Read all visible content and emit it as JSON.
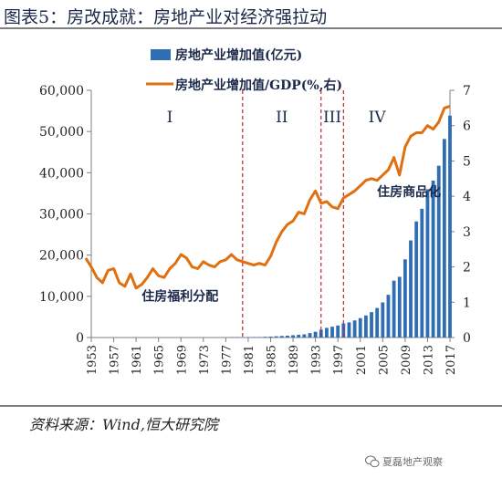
{
  "title": "图表5：房改成就：房地产业对经济强拉动",
  "source": "资料来源：Wind,恒大研究院",
  "watermark": "夏磊地产观察",
  "colors": {
    "bar": "#2f6db5",
    "line": "#e0700f",
    "divider": "#c0262d",
    "text": "#1b2a4a",
    "axis": "#7f7f7f"
  },
  "chart_data": {
    "type": "bar+line",
    "legend": {
      "position": "top",
      "bar_label": "房地产业增加值(亿元)",
      "line_label": "房地产业增加值/GDP(%,右)"
    },
    "x_ticks": [
      "1953",
      "1957",
      "1961",
      "1965",
      "1969",
      "1973",
      "1977",
      "1981",
      "1985",
      "1989",
      "1993",
      "1997",
      "2001",
      "2005",
      "2009",
      "2013",
      "2017"
    ],
    "x_range": [
      1953,
      2017
    ],
    "y_left": {
      "ticks": [
        "0",
        "10,000",
        "20,000",
        "30,000",
        "40,000",
        "50,000",
        "60,000"
      ],
      "range": [
        0,
        60000
      ]
    },
    "y_right": {
      "ticks": [
        "0",
        "1",
        "2",
        "3",
        "4",
        "5",
        "6",
        "7"
      ],
      "range": [
        0,
        7
      ]
    },
    "periods": [
      {
        "label": "I",
        "center_year": 1967
      },
      {
        "label": "II",
        "center_year": 1987
      },
      {
        "label": "III",
        "center_year": 1996
      },
      {
        "label": "IV",
        "center_year": 2004
      }
    ],
    "dividers": [
      1980,
      1994,
      1998
    ],
    "annotations": [
      {
        "text": "住房福利分配",
        "year": 1962,
        "value_right": 1.05
      },
      {
        "text": "住房商品化",
        "year": 2004,
        "value_right": 4.0
      }
    ],
    "bar_series": {
      "name": "房地产业增加值(亿元)",
      "years": [
        1978,
        1979,
        1980,
        1981,
        1982,
        1983,
        1984,
        1985,
        1986,
        1987,
        1988,
        1989,
        1990,
        1991,
        1992,
        1993,
        1994,
        1995,
        1996,
        1997,
        1998,
        1999,
        2000,
        2001,
        2002,
        2003,
        2004,
        2005,
        2006,
        2007,
        2008,
        2009,
        2010,
        2011,
        2012,
        2013,
        2014,
        2015,
        2016,
        2017
      ],
      "values": [
        80,
        90,
        96,
        99,
        115,
        125,
        165,
        215,
        295,
        380,
        450,
        560,
        660,
        770,
        1080,
        1400,
        1900,
        2350,
        2620,
        2920,
        3430,
        3680,
        4150,
        4710,
        5350,
        6170,
        7170,
        8520,
        10370,
        13810,
        14740,
        18970,
        23570,
        28170,
        31250,
        35990,
        38090,
        41700,
        48190,
        53850
      ]
    },
    "line_series": {
      "name": "房地产业增加值/GDP(%,右)",
      "points": [
        [
          1952,
          2.25
        ],
        [
          1953,
          2.0
        ],
        [
          1954,
          1.7
        ],
        [
          1955,
          1.55
        ],
        [
          1956,
          1.9
        ],
        [
          1957,
          1.95
        ],
        [
          1958,
          1.55
        ],
        [
          1959,
          1.45
        ],
        [
          1960,
          1.8
        ],
        [
          1961,
          1.4
        ],
        [
          1962,
          1.5
        ],
        [
          1963,
          1.7
        ],
        [
          1964,
          1.95
        ],
        [
          1965,
          1.75
        ],
        [
          1966,
          1.7
        ],
        [
          1967,
          1.95
        ],
        [
          1968,
          2.1
        ],
        [
          1969,
          2.35
        ],
        [
          1970,
          2.25
        ],
        [
          1971,
          2.0
        ],
        [
          1972,
          1.95
        ],
        [
          1973,
          2.15
        ],
        [
          1974,
          2.05
        ],
        [
          1975,
          2.0
        ],
        [
          1976,
          2.15
        ],
        [
          1977,
          2.2
        ],
        [
          1978,
          2.35
        ],
        [
          1979,
          2.2
        ],
        [
          1980,
          2.15
        ],
        [
          1981,
          2.1
        ],
        [
          1982,
          2.05
        ],
        [
          1983,
          2.1
        ],
        [
          1984,
          2.05
        ],
        [
          1985,
          2.3
        ],
        [
          1986,
          2.7
        ],
        [
          1987,
          3.0
        ],
        [
          1988,
          3.2
        ],
        [
          1989,
          3.3
        ],
        [
          1990,
          3.55
        ],
        [
          1991,
          3.5
        ],
        [
          1992,
          3.9
        ],
        [
          1993,
          4.15
        ],
        [
          1994,
          3.8
        ],
        [
          1995,
          3.85
        ],
        [
          1996,
          3.7
        ],
        [
          1997,
          3.65
        ],
        [
          1998,
          3.95
        ],
        [
          1999,
          4.05
        ],
        [
          2000,
          4.15
        ],
        [
          2001,
          4.3
        ],
        [
          2002,
          4.45
        ],
        [
          2003,
          4.5
        ],
        [
          2004,
          4.45
        ],
        [
          2005,
          4.6
        ],
        [
          2006,
          4.75
        ],
        [
          2007,
          5.1
        ],
        [
          2008,
          4.6
        ],
        [
          2009,
          5.4
        ],
        [
          2010,
          5.7
        ],
        [
          2011,
          5.8
        ],
        [
          2012,
          5.8
        ],
        [
          2013,
          6.0
        ],
        [
          2014,
          5.9
        ],
        [
          2015,
          6.1
        ],
        [
          2016,
          6.5
        ],
        [
          2017,
          6.55
        ]
      ]
    }
  }
}
